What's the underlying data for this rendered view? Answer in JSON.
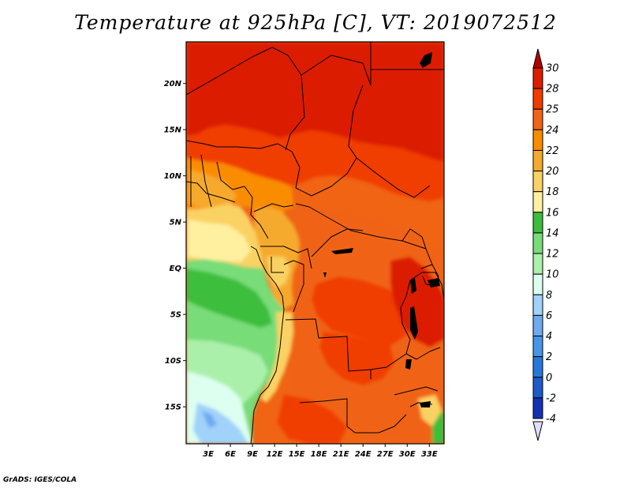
{
  "title": "Temperature at 925hPa [C], VT: 2019072512",
  "footer": "GrADS: IGES/COLA",
  "map": {
    "lon_range": [
      0,
      35
    ],
    "lat_range": [
      -19,
      24.5
    ],
    "lat_ticks": [
      {
        "value": 20,
        "label": "20N"
      },
      {
        "value": 15,
        "label": "15N"
      },
      {
        "value": 10,
        "label": "10N"
      },
      {
        "value": 5,
        "label": "5N"
      },
      {
        "value": 0,
        "label": "EQ"
      },
      {
        "value": -5,
        "label": "5S"
      },
      {
        "value": -10,
        "label": "10S"
      },
      {
        "value": -15,
        "label": "15S"
      }
    ],
    "lon_ticks": [
      {
        "value": 3,
        "label": "3E"
      },
      {
        "value": 6,
        "label": "6E"
      },
      {
        "value": 9,
        "label": "9E"
      },
      {
        "value": 12,
        "label": "12E"
      },
      {
        "value": 15,
        "label": "15E"
      },
      {
        "value": 18,
        "label": "18E"
      },
      {
        "value": 21,
        "label": "21E"
      },
      {
        "value": 24,
        "label": "24E"
      },
      {
        "value": 27,
        "label": "27E"
      },
      {
        "value": 30,
        "label": "30E"
      },
      {
        "value": 33,
        "label": "33E"
      }
    ]
  },
  "colorbar": {
    "bins": [
      {
        "label": "30",
        "color": "#dc1e00"
      },
      {
        "label": "28",
        "color": "#f03c00"
      },
      {
        "label": "25",
        "color": "#f06414"
      },
      {
        "label": "24",
        "color": "#fa8c00"
      },
      {
        "label": "22",
        "color": "#f5aa2d"
      },
      {
        "label": "20",
        "color": "#fad264"
      },
      {
        "label": "18",
        "color": "#fff0a0"
      },
      {
        "label": "16",
        "color": "#3cbe3c"
      },
      {
        "label": "14",
        "color": "#78dc78"
      },
      {
        "label": "12",
        "color": "#aaf0aa"
      },
      {
        "label": "10",
        "color": "#dcfff0"
      },
      {
        "label": "8",
        "color": "#a0d2fa"
      },
      {
        "label": "6",
        "color": "#6eaaf0"
      },
      {
        "label": "4",
        "color": "#4696e6"
      },
      {
        "label": "2",
        "color": "#2878dc"
      },
      {
        "label": "0",
        "color": "#1e5ac8"
      },
      {
        "label": "-2",
        "color": "#1432b4"
      },
      {
        "label": "-4",
        "color": "#0a0a78"
      }
    ],
    "top_arrow_color": "#b40000",
    "bottom_arrow_color": "#e1dcff"
  }
}
